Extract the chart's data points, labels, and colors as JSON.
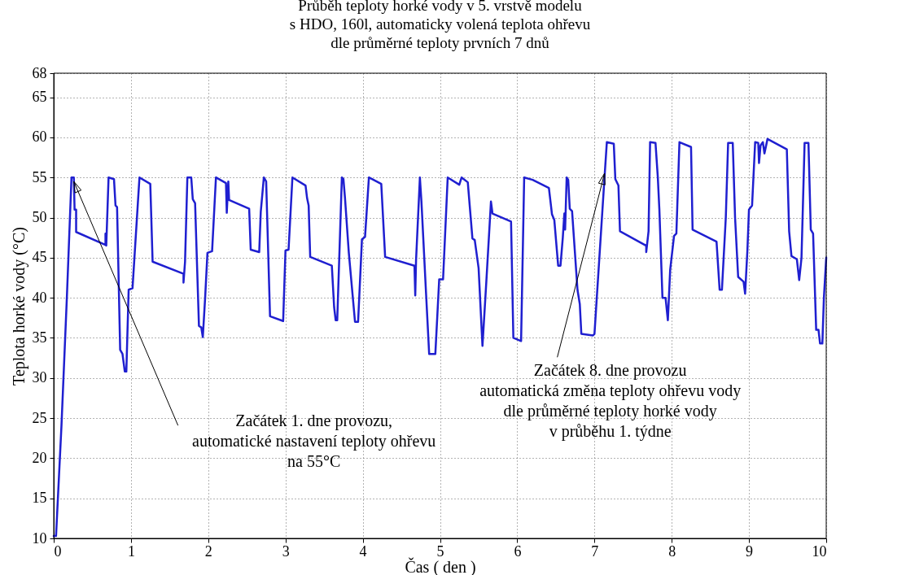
{
  "chart_data": {
    "type": "line",
    "title": "Průběh teploty horké vody v 5. vrstvě modelu\ns HDO, 160l, automaticky volená teplota ohřevu\ndle průměrné teploty prvních 7 dnů",
    "xlabel": "Čas ( den )",
    "ylabel": "Teplota horké vody (°C)",
    "xlim": [
      0,
      10
    ],
    "ylim": [
      10,
      68
    ],
    "xticks": [
      0,
      1,
      2,
      3,
      4,
      5,
      6,
      7,
      8,
      9,
      10
    ],
    "yticks": [
      10,
      15,
      20,
      25,
      30,
      35,
      40,
      45,
      50,
      55,
      60,
      65,
      68
    ],
    "grid": true,
    "line_style": "solid",
    "marker": "none",
    "annotations": [
      {
        "text": "Začátek 1. dne provozu,\nautomatické nastavení teploty ohřevu\nna 55°C",
        "x": 0.26,
        "y": 54.5
      },
      {
        "text": "Začátek 8. dne provozu\nautomatická změna teploty ohřevu vody\ndle průměrné teploty horké vody\nv průběhu 1. týdne",
        "x": 7.13,
        "y": 55.5
      }
    ],
    "series": [
      {
        "color": "#1f1fd0",
        "x": [
          0,
          0.03,
          0.1,
          0.17,
          0.23,
          0.26,
          0.27,
          0.29,
          0.29,
          0.67,
          0.67,
          0.68,
          0.71,
          0.78,
          0.8,
          0.82,
          0.86,
          0.89,
          0.92,
          0.94,
          0.97,
          1.02,
          1.11,
          1.25,
          1.28,
          1.68,
          1.68,
          1.7,
          1.73,
          1.78,
          1.8,
          1.83,
          1.88,
          1.91,
          1.93,
          1.96,
          1.99,
          2.05,
          2.1,
          2.23,
          2.24,
          2.26,
          2.27,
          2.53,
          2.55,
          2.66,
          2.68,
          2.72,
          2.75,
          2.8,
          2.97,
          3.0,
          3.04,
          3.09,
          3.26,
          3.28,
          3.3,
          3.32,
          3.6,
          3.63,
          3.65,
          3.67,
          3.73,
          3.75,
          3.77,
          3.82,
          3.9,
          3.94,
          3.99,
          4.03,
          4.08,
          4.24,
          4.29,
          4.67,
          4.68,
          4.69,
          4.74,
          4.76,
          4.82,
          4.86,
          4.94,
          4.99,
          5.04,
          5.1,
          5.25,
          5.28,
          5.36,
          5.42,
          5.45,
          5.5,
          5.55,
          5.6,
          5.66,
          5.68,
          5.92,
          5.95,
          6.05,
          6.09,
          6.2,
          6.41,
          6.45,
          6.48,
          6.53,
          6.56,
          6.59,
          6.61,
          6.62,
          6.64,
          6.66,
          6.68,
          6.71,
          6.78,
          6.81,
          6.83,
          6.98,
          7.0,
          7.13,
          7.16,
          7.25,
          7.27,
          7.31,
          7.33,
          7.67,
          7.67,
          7.7,
          7.72,
          7.79,
          7.82,
          7.84,
          7.88,
          7.92,
          7.95,
          7.98,
          8.03,
          8.06,
          8.1,
          8.25,
          8.27,
          8.58,
          8.62,
          8.65,
          8.7,
          8.73,
          8.79,
          8.82,
          8.86,
          8.93,
          8.95,
          8.98,
          9.0,
          9.04,
          9.08,
          9.12,
          9.13,
          9.15,
          9.18,
          9.2,
          9.24,
          9.49,
          9.52,
          9.55,
          9.62,
          9.65,
          9.68,
          9.72,
          9.77,
          9.8,
          9.83,
          9.87,
          9.9,
          9.92,
          9.95,
          9.97,
          10
        ],
        "values": [
          10.3,
          10.3,
          24,
          40,
          55,
          55,
          51,
          51,
          48.2,
          46.6,
          48,
          46.5,
          55,
          54.8,
          51.5,
          51.3,
          33.5,
          33,
          30.8,
          30.8,
          41,
          41.2,
          55,
          54.2,
          44.5,
          43,
          41.9,
          44.5,
          55,
          55,
          52.3,
          51.8,
          36.5,
          36.3,
          35.1,
          40,
          45.6,
          45.8,
          55,
          54.3,
          50.6,
          54.5,
          52.2,
          51.1,
          46,
          45.7,
          50.7,
          55,
          54.5,
          37.7,
          37.1,
          45.9,
          46,
          55,
          54,
          52.4,
          51.5,
          45.1,
          44,
          38.8,
          37.2,
          37.2,
          55,
          54.8,
          52.5,
          45.6,
          37,
          37,
          47.3,
          47.6,
          55,
          54.2,
          45.1,
          44,
          40.3,
          44.6,
          55,
          52,
          40.5,
          33,
          33,
          42.3,
          42.3,
          55,
          54.1,
          55,
          54.4,
          47.4,
          47.2,
          43.7,
          34,
          42,
          52,
          50.5,
          49.5,
          35,
          34.6,
          55,
          54.7,
          53.7,
          50.4,
          49.7,
          44,
          44,
          47.5,
          50.5,
          48.5,
          55,
          54.7,
          51.1,
          50.8,
          41,
          39.2,
          35.5,
          35.3,
          35.5,
          55,
          59.4,
          59.2,
          54.8,
          54,
          48.3,
          46.5,
          45.7,
          48.3,
          59.4,
          59.3,
          55,
          51,
          40,
          40,
          37.2,
          43.5,
          47.7,
          48,
          59.4,
          58.8,
          48.5,
          47,
          41,
          41,
          50,
          59.3,
          59.3,
          50,
          42.6,
          42,
          40.5,
          46,
          51,
          51.5,
          59.4,
          59.3,
          56.8,
          59,
          59.4,
          58,
          59.8,
          58.5,
          48.3,
          45.2,
          44.8,
          42.2,
          45,
          59.3,
          59.3,
          48.5,
          48,
          36,
          36,
          34.3,
          34.3,
          40,
          45
        ]
      }
    ]
  }
}
